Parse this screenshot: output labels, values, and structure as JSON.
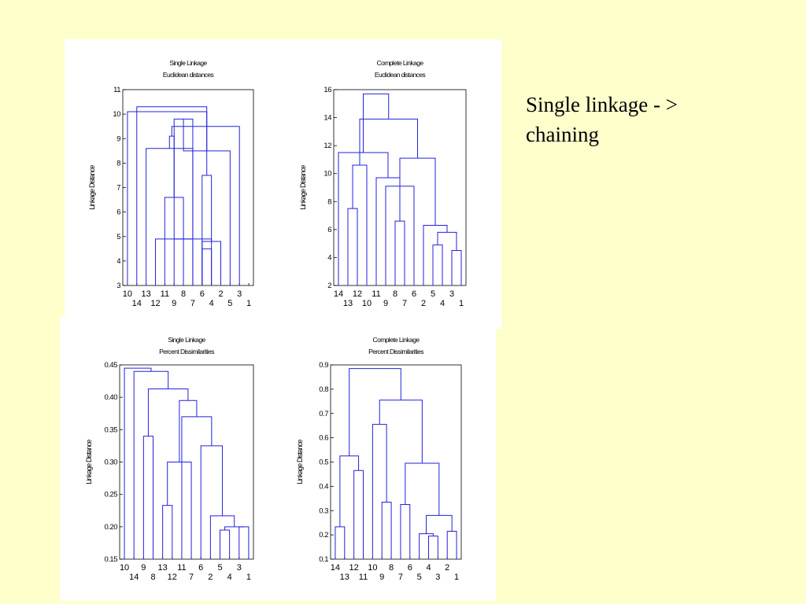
{
  "slide": {
    "note_line1": "Single linkage - >",
    "note_line2": "chaining",
    "background": "#ffffcc",
    "tree_color": "#2222dd"
  },
  "chart_data": [
    {
      "type": "dendrogram",
      "title": "Single Linkage",
      "subtitle": "Euclidean distances",
      "ylabel": "Linkage Distance",
      "ylim": [
        3,
        11
      ],
      "yticks": [
        3,
        4,
        5,
        6,
        7,
        8,
        9,
        10,
        11
      ],
      "leaf_order": [
        "10",
        "14",
        "13",
        "12",
        "11",
        "9",
        "8",
        "7",
        "6",
        "4",
        "2",
        "5",
        "3",
        "1"
      ],
      "merges": [
        {
          "l": 8,
          "r": 9,
          "h": 4.5
        },
        {
          "l": 3,
          "r": 7,
          "h": 4.9
        },
        {
          "l": 8,
          "r": 10,
          "h": 4.8
        },
        {
          "l": 15,
          "r": 16,
          "h": 4.9
        },
        {
          "l": 2,
          "r": 17,
          "h": 8.6
        },
        {
          "l": 4,
          "r": 6,
          "h": 6.6
        },
        {
          "l": 5,
          "r": 18,
          "h": 9.1
        },
        {
          "l": 7,
          "r": 19,
          "h": 9.8
        },
        {
          "l": 8,
          "r": 9,
          "h": 7.5
        },
        {
          "l": 11,
          "r": 21,
          "h": 8.5
        },
        {
          "l": 12,
          "r": 20,
          "h": 9.5
        },
        {
          "l": 0,
          "r": 22,
          "h": 10.1
        },
        {
          "l": 1,
          "r": 23,
          "h": 10.3
        }
      ]
    },
    {
      "type": "dendrogram",
      "title": "Complete Linkage",
      "subtitle": "Euclidean distances",
      "ylabel": "Linkage Distance",
      "ylim": [
        2,
        16
      ],
      "yticks": [
        2,
        4,
        6,
        8,
        10,
        12,
        14,
        16
      ],
      "leaf_order": [
        "14",
        "13",
        "12",
        "10",
        "11",
        "9",
        "8",
        "7",
        "6",
        "2",
        "5",
        "4",
        "3",
        "1"
      ],
      "merges": [
        {
          "l": 13,
          "r": 12,
          "h": 4.5
        },
        {
          "l": 11,
          "r": 10,
          "h": 4.9
        },
        {
          "l": 15,
          "r": 14,
          "h": 5.8
        },
        {
          "l": 16,
          "r": 9,
          "h": 6.3
        },
        {
          "l": 7,
          "r": 6,
          "h": 6.6
        },
        {
          "l": 2,
          "r": 1,
          "h": 7.5
        },
        {
          "l": 8,
          "r": 5,
          "h": 9.1
        },
        {
          "l": 18,
          "r": 4,
          "h": 9.7
        },
        {
          "l": 19,
          "r": 3,
          "h": 10.6
        },
        {
          "l": 20,
          "r": 17,
          "h": 11.1
        },
        {
          "l": 21,
          "r": 0,
          "h": 11.5
        },
        {
          "l": 22,
          "r": 23,
          "h": 13.9
        },
        {
          "l": 24,
          "r": 25,
          "h": 15.7
        }
      ]
    },
    {
      "type": "dendrogram",
      "title": "Single Linkage",
      "subtitle": "Percent Dissimilarities",
      "ylabel": "Linkage Distance",
      "ylim": [
        0.15,
        0.45
      ],
      "yticks": [
        0.15,
        0.2,
        0.25,
        0.3,
        0.35,
        0.4,
        0.45
      ],
      "tick_labels": [
        "0.15",
        "0.20",
        "0.25",
        "0.30",
        "0.35",
        "0.40",
        "0.45"
      ],
      "leaf_order": [
        "10",
        "14",
        "9",
        "8",
        "13",
        "12",
        "11",
        "7",
        "6",
        "2",
        "5",
        "4",
        "3",
        "1"
      ],
      "merges": [
        {
          "l": 11,
          "r": 10,
          "h": 0.195
        },
        {
          "l": 12,
          "r": 13,
          "h": 0.2
        },
        {
          "l": 14,
          "r": 15,
          "h": 0.2
        },
        {
          "l": 16,
          "r": 9,
          "h": 0.217
        },
        {
          "l": 5,
          "r": 4,
          "h": 0.233
        },
        {
          "l": 18,
          "r": 7,
          "h": 0.3
        },
        {
          "l": 8,
          "r": 17,
          "h": 0.325
        },
        {
          "l": 3,
          "r": 2,
          "h": 0.34
        },
        {
          "l": 20,
          "r": 6,
          "h": 0.37
        },
        {
          "l": 19,
          "r": 22,
          "h": 0.395
        },
        {
          "l": 21,
          "r": 23,
          "h": 0.413
        },
        {
          "l": 24,
          "r": 1,
          "h": 0.44
        },
        {
          "l": 25,
          "r": 0,
          "h": 0.445
        }
      ]
    },
    {
      "type": "dendrogram",
      "title": "Complete Linkage",
      "subtitle": "Percent Dissimilarities",
      "ylabel": "Linkage Distance",
      "ylim": [
        0.1,
        0.9
      ],
      "yticks": [
        0.1,
        0.2,
        0.3,
        0.4,
        0.5,
        0.6,
        0.7,
        0.8,
        0.9
      ],
      "tick_labels": [
        "0.1",
        "0.2",
        "0.3",
        "0.4",
        "0.5",
        "0.6",
        "0.7",
        "0.8",
        "0.9"
      ],
      "leaf_order": [
        "14",
        "13",
        "12",
        "11",
        "10",
        "9",
        "8",
        "7",
        "6",
        "5",
        "4",
        "3",
        "2",
        "1"
      ],
      "merges": [
        {
          "l": 10,
          "r": 11,
          "h": 0.195
        },
        {
          "l": 14,
          "r": 9,
          "h": 0.205
        },
        {
          "l": 12,
          "r": 13,
          "h": 0.215
        },
        {
          "l": 15,
          "r": 16,
          "h": 0.28
        },
        {
          "l": 7,
          "r": 8,
          "h": 0.325
        },
        {
          "l": 5,
          "r": 6,
          "h": 0.335
        },
        {
          "l": 17,
          "r": 18,
          "h": 0.495
        },
        {
          "l": 19,
          "r": 4,
          "h": 0.655
        },
        {
          "l": 2,
          "r": 3,
          "h": 0.465
        },
        {
          "l": 0,
          "r": 1,
          "h": 0.233
        },
        {
          "l": 22,
          "r": 23,
          "h": 0.525
        },
        {
          "l": 21,
          "r": 20,
          "h": 0.755
        },
        {
          "l": 24,
          "r": 25,
          "h": 0.885
        }
      ]
    }
  ]
}
